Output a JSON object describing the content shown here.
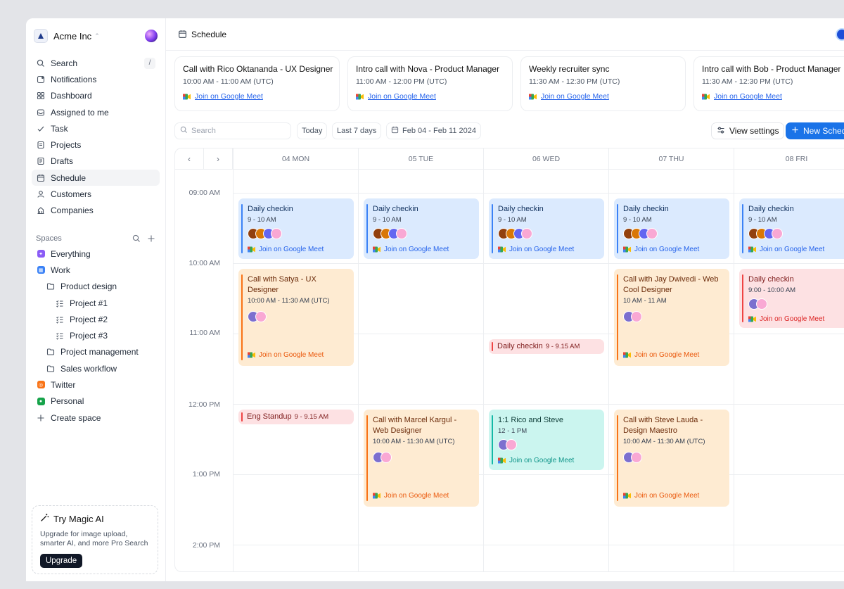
{
  "workspace": {
    "name": "Acme Inc"
  },
  "sidebar": {
    "search": {
      "label": "Search",
      "shortcut": "/"
    },
    "items": [
      {
        "label": "Notifications"
      },
      {
        "label": "Dashboard"
      },
      {
        "label": "Assigned to me"
      },
      {
        "label": "Task"
      },
      {
        "label": "Projects"
      },
      {
        "label": "Drafts"
      },
      {
        "label": "Schedule"
      },
      {
        "label": "Customers"
      },
      {
        "label": "Companies"
      }
    ],
    "spaces_label": "Spaces",
    "spaces": {
      "everything": "Everything",
      "work": "Work",
      "product_design": "Product design",
      "project1": "Project #1",
      "project2": "Project #2",
      "project3": "Project #3",
      "project_management": "Project management",
      "sales_workflow": "Sales workflow",
      "twitter": "Twitter",
      "personal": "Personal",
      "create": "Create space"
    },
    "magic": {
      "title": "Try Magic AI",
      "desc": "Upgrade for image upload, smarter AI, and more Pro Search",
      "button": "Upgrade"
    }
  },
  "header": {
    "title": "Schedule"
  },
  "upcoming": [
    {
      "title": "Call with Rico Oktananda - UX Designer",
      "time": "10:00 AM - 11:00 AM (UTC)",
      "link": "Join on Google Meet"
    },
    {
      "title": "Intro call with Nova - Product Manager",
      "time": "11:00 AM - 12:00 PM (UTC)",
      "link": "Join on Google Meet"
    },
    {
      "title": "Weekly recruiter sync",
      "time": "11:30 AM - 12:30 PM (UTC)",
      "link": "Join on Google Meet"
    },
    {
      "title": "Intro call with Bob - Product Manager",
      "time": "11:30 AM - 12:30 PM (UTC)",
      "link": "Join on Google Meet"
    }
  ],
  "toolbar": {
    "search_placeholder": "Search",
    "today": "Today",
    "last7": "Last 7 days",
    "range": "Feb 04 - Feb 11 2024",
    "view_settings": "View settings",
    "new_schedule": "New Schedule"
  },
  "calendar": {
    "days": [
      "04 MON",
      "05 TUE",
      "06 WED",
      "07 THU",
      "08 FRI"
    ],
    "hours": [
      "09:00 AM",
      "10:00 AM",
      "11:00 AM",
      "12:00 PM",
      "1:00 PM",
      "2:00 PM"
    ],
    "events": {
      "mon_checkin": {
        "title": "Daily checkin",
        "time": "9 - 10 AM",
        "link": "Join on Google Meet"
      },
      "tue_checkin": {
        "title": "Daily checkin",
        "time": "9 - 10 AM",
        "link": "Join on Google Meet"
      },
      "wed_checkin": {
        "title": "Daily checkin",
        "time": "9 - 10 AM",
        "link": "Join on Google Meet"
      },
      "thu_checkin": {
        "title": "Daily checkin",
        "time": "9 - 10 AM",
        "link": "Join on Google Meet"
      },
      "fri_checkin": {
        "title": "Daily checkin",
        "time": "9 - 10 AM",
        "link": "Join on Google Meet"
      },
      "mon_satya": {
        "title": "Call with Satya - UX Designer",
        "time": "10:00 AM - 11:30 AM (UTC)",
        "link": "Join on Google Meet"
      },
      "thu_jay": {
        "title": "Call with Jay Dwivedi - Web Cool Designer",
        "time": "10 AM - 11 AM",
        "link": "Join on Google Meet"
      },
      "fri_checkin2": {
        "title": "Daily checkin",
        "time": "9:00 - 10:00 AM",
        "link": "Join on Google Meet"
      },
      "wed_checkin_slim": {
        "title": "Daily checkin",
        "time": "9 - 9.15 AM"
      },
      "mon_standup": {
        "title": "Eng Standup",
        "time": "9 - 9.15 AM"
      },
      "tue_marcel": {
        "title": "Call with Marcel Kargul - Web Designer",
        "time": "10:00 AM - 11:30 AM (UTC)",
        "link": "Join on Google Meet"
      },
      "wed_rico": {
        "title": "1:1 Rico and Steve",
        "time": "12 - 1 PM",
        "link": "Join on Google Meet"
      },
      "thu_steve": {
        "title": "Call with Steve Lauda - Design Maestro",
        "time": "10:00 AM - 11:30 AM (UTC)",
        "link": "Join on Google Meet"
      }
    }
  },
  "colors": {
    "accent": "#1a73e8",
    "blue": "#dbeafe",
    "orange": "#feebd2",
    "red": "#fde1e3",
    "teal": "#cbf5ef"
  }
}
